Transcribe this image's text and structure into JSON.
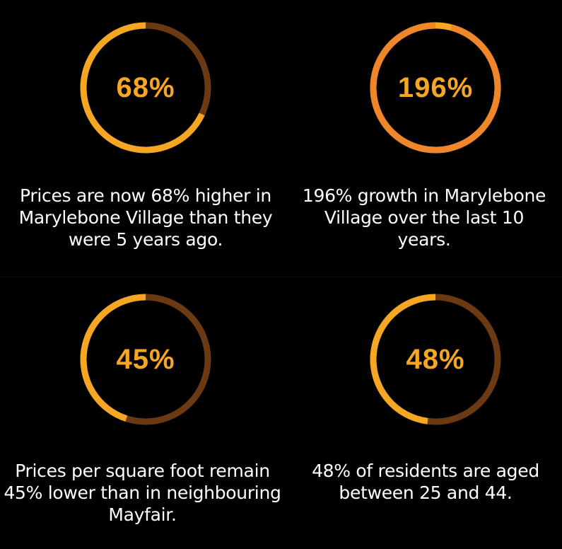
{
  "stats": [
    {
      "value_label": "68%",
      "caption": "Prices are now 68% higher in Marylebone Village than they were 5 years ago.",
      "fill_fraction": 0.68,
      "ring_color": "#f5a623",
      "track_color": "#6b3a12",
      "value_color": "#f5a623"
    },
    {
      "value_label": "196%",
      "caption": "196% growth in Marylebone Village over the last 10 years.",
      "fill_fraction": 0.96,
      "ring_color": "#f0862a",
      "track_color": "#f5a623",
      "value_color": "#f5a623"
    },
    {
      "value_label": "45%",
      "caption": "Prices per square foot remain 45% lower than in neighbouring Mayfair.",
      "fill_fraction": 0.45,
      "ring_color": "#f5a623",
      "track_color": "#6b3a12",
      "value_color": "#f5a623"
    },
    {
      "value_label": "48%",
      "caption": "48% of residents are aged between 25 and 44.",
      "fill_fraction": 0.48,
      "ring_color": "#f5a623",
      "track_color": "#6b3a12",
      "value_color": "#f5a623"
    }
  ],
  "chart_data": [
    {
      "type": "pie",
      "values": [
        68,
        32
      ],
      "label": "68%"
    },
    {
      "type": "pie",
      "values": [
        96,
        4
      ],
      "label": "196%"
    },
    {
      "type": "pie",
      "values": [
        45,
        55
      ],
      "label": "45%"
    },
    {
      "type": "pie",
      "values": [
        48,
        52
      ],
      "label": "48%"
    }
  ]
}
